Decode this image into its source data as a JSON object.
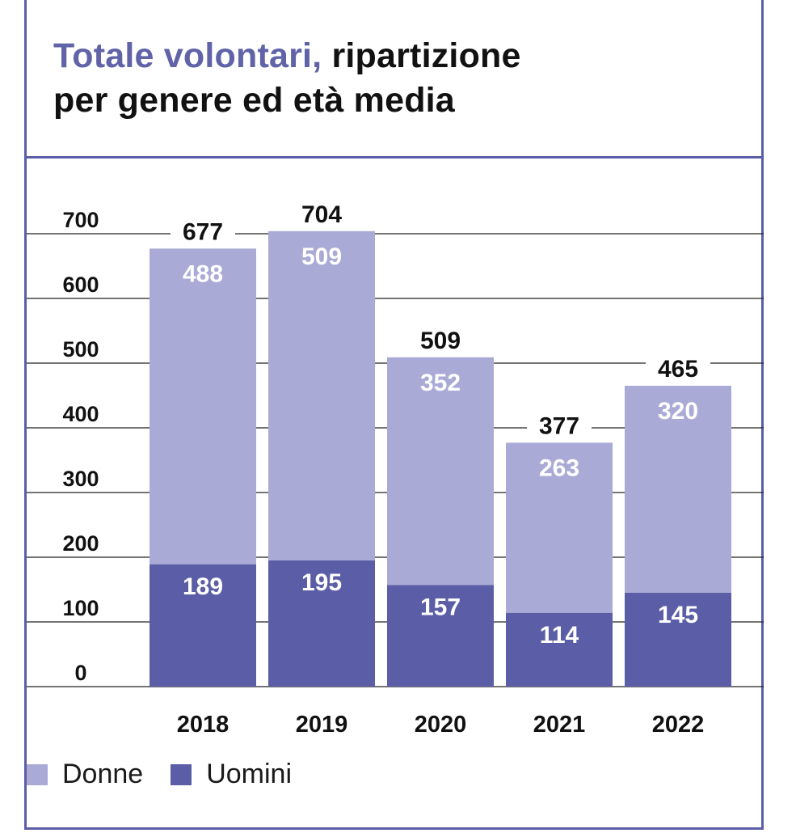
{
  "title": {
    "accent": "Totale volontari,",
    "line1_rest": " ripartizione",
    "line2": "per genere ed età media"
  },
  "colors": {
    "donne": "#aaaad6",
    "uomini": "#5b5ea6",
    "accent": "#6163a8",
    "grid": "#222222"
  },
  "legend": {
    "donne": "Donne",
    "uomini": "Uomini"
  },
  "chart_data": {
    "type": "bar",
    "stacked": true,
    "title": "Totale volontari, ripartizione per genere ed età media",
    "categories": [
      "2018",
      "2019",
      "2020",
      "2021",
      "2022"
    ],
    "series": [
      {
        "name": "Uomini",
        "values": [
          189,
          195,
          157,
          114,
          145
        ]
      },
      {
        "name": "Donne",
        "values": [
          488,
          509,
          352,
          263,
          320
        ]
      }
    ],
    "totals": [
      677,
      704,
      509,
      377,
      465
    ],
    "yticks": [
      "0",
      "100",
      "200",
      "300",
      "400",
      "500",
      "600",
      "700"
    ],
    "ylim": [
      0,
      700
    ],
    "xlabel": "",
    "ylabel": "",
    "grid": true,
    "legend_position": "bottom-left"
  }
}
